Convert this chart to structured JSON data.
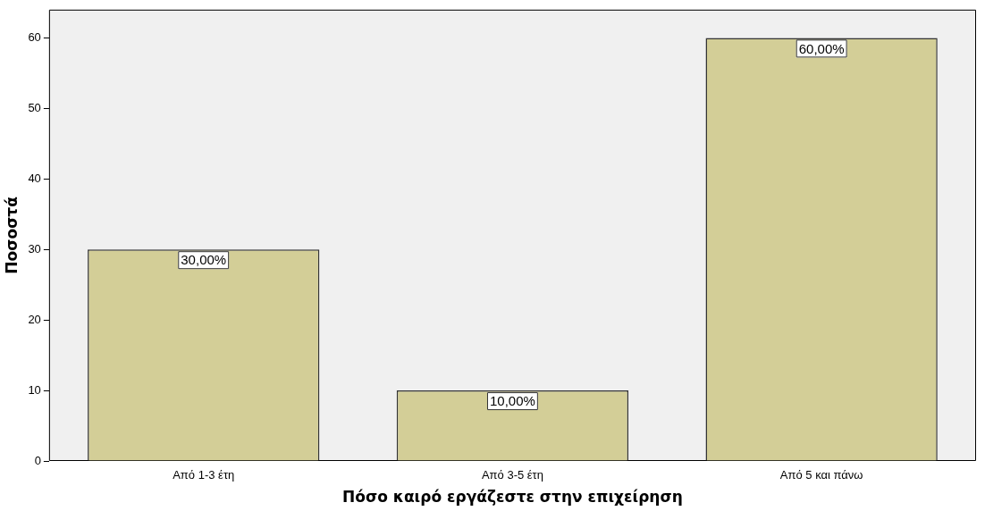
{
  "chart_data": {
    "type": "bar",
    "xlabel": "Πόσο καιρό εργάζεστε στην επιχείρηση",
    "ylabel": "Ποσοστά",
    "categories": [
      "Από 1-3 έτη",
      "Από 3-5 έτη",
      "Από 5 και πάνω"
    ],
    "values": [
      30,
      10,
      60
    ],
    "value_labels": [
      "30,00%",
      "10,00%",
      "60,00%"
    ],
    "color": "#d3ce97",
    "ylim": [
      0,
      64
    ],
    "yticks": [
      0,
      10,
      20,
      30,
      40,
      50,
      60
    ],
    "grid": false,
    "legend": false
  }
}
